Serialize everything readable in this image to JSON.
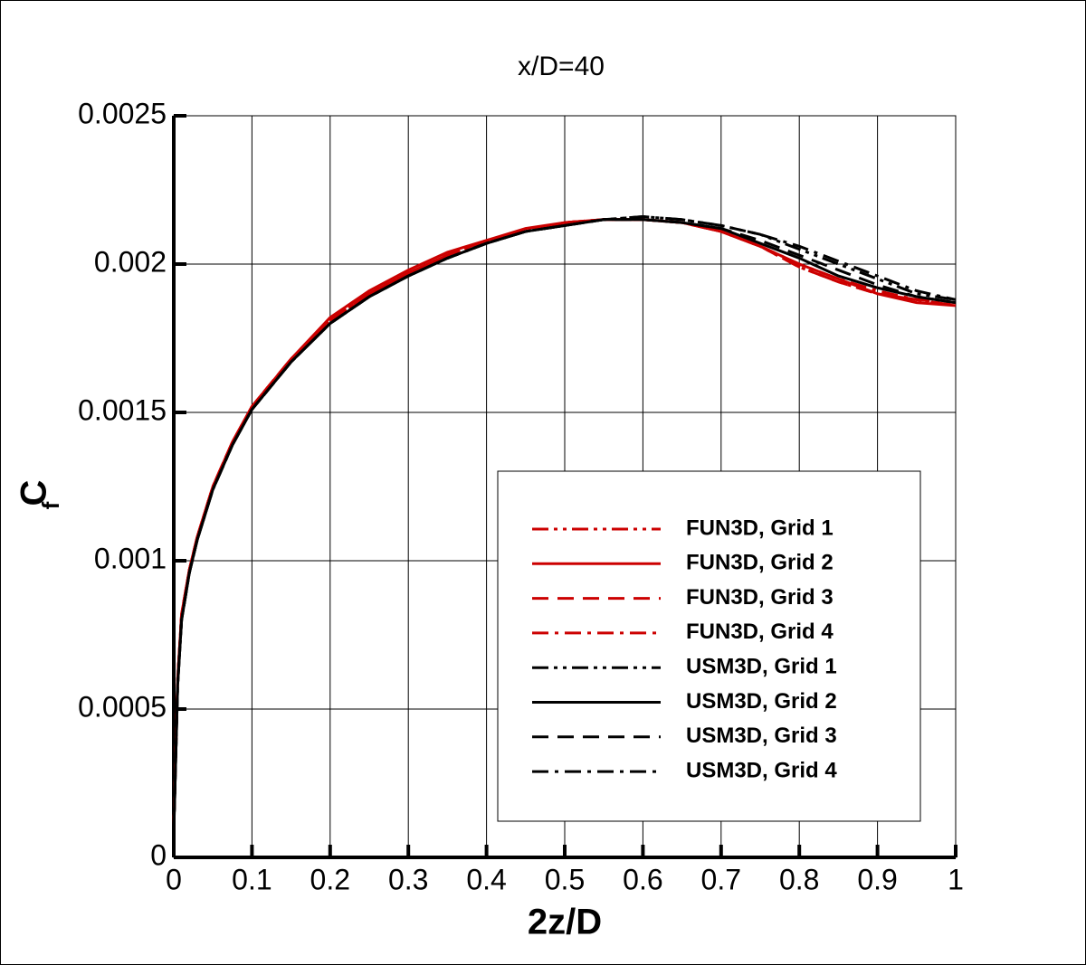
{
  "chart_data": {
    "type": "line",
    "title": "x/D=40",
    "xlabel": "2z/D",
    "ylabel": "C",
    "ylabel_subscript": "f",
    "xlim": [
      0,
      1
    ],
    "xticks": [
      0,
      0.1,
      0.2,
      0.3,
      0.4,
      0.5,
      0.6,
      0.7,
      0.8,
      0.9,
      1
    ],
    "ylim": [
      0,
      0.0025
    ],
    "yticks": [
      0,
      0.0005,
      0.001,
      0.0015,
      0.002,
      0.0025
    ],
    "grid": true,
    "legend": "lower right",
    "x": [
      0,
      0.005,
      0.01,
      0.02,
      0.03,
      0.05,
      0.075,
      0.1,
      0.15,
      0.2,
      0.25,
      0.3,
      0.35,
      0.4,
      0.45,
      0.5,
      0.55,
      0.6,
      0.65,
      0.7,
      0.75,
      0.8,
      0.85,
      0.9,
      0.95,
      1
    ],
    "series": [
      {
        "name": "FUN3D, Grid 1",
        "color": "#cc0000",
        "dash": "dash-dot-dot",
        "values": [
          9e-05,
          0.0006,
          0.00082,
          0.00097,
          0.00108,
          0.00125,
          0.0014,
          0.00152,
          0.00168,
          0.00181,
          0.0019,
          0.00197,
          0.00203,
          0.00208,
          0.00211,
          0.00214,
          0.00215,
          0.00215,
          0.00214,
          0.00211,
          0.00206,
          0.00199,
          0.00194,
          0.0019,
          0.00188,
          0.00186
        ]
      },
      {
        "name": "FUN3D, Grid 2",
        "color": "#cc0000",
        "dash": "solid",
        "values": [
          9e-05,
          0.0006,
          0.00082,
          0.00097,
          0.00108,
          0.00125,
          0.0014,
          0.00152,
          0.00168,
          0.00182,
          0.00191,
          0.00198,
          0.00204,
          0.00208,
          0.00212,
          0.00214,
          0.00215,
          0.00215,
          0.00214,
          0.00211,
          0.00206,
          0.002,
          0.00195,
          0.0019,
          0.00187,
          0.00186
        ]
      },
      {
        "name": "FUN3D, Grid 3",
        "color": "#cc0000",
        "dash": "dashed",
        "values": [
          9e-05,
          0.0006,
          0.00082,
          0.00097,
          0.00108,
          0.00125,
          0.0014,
          0.00152,
          0.00168,
          0.00181,
          0.0019,
          0.00197,
          0.00203,
          0.00208,
          0.00211,
          0.00214,
          0.00215,
          0.00215,
          0.00214,
          0.00211,
          0.00206,
          0.00199,
          0.00194,
          0.0019,
          0.00188,
          0.00186
        ]
      },
      {
        "name": "FUN3D, Grid 4",
        "color": "#cc0000",
        "dash": "dash-dot",
        "values": [
          9e-05,
          0.0006,
          0.00082,
          0.00097,
          0.00108,
          0.00125,
          0.0014,
          0.00152,
          0.00168,
          0.00181,
          0.0019,
          0.00197,
          0.00203,
          0.00208,
          0.00211,
          0.00214,
          0.00215,
          0.00215,
          0.00214,
          0.00211,
          0.00206,
          0.002,
          0.00195,
          0.00191,
          0.00188,
          0.00187
        ]
      },
      {
        "name": "USM3D, Grid 1",
        "color": "#000000",
        "dash": "dash-dot-dot",
        "values": [
          8e-05,
          0.00058,
          0.0008,
          0.00096,
          0.00107,
          0.00124,
          0.00139,
          0.00151,
          0.00167,
          0.0018,
          0.00189,
          0.00196,
          0.00202,
          0.00207,
          0.00211,
          0.00213,
          0.00215,
          0.00216,
          0.00215,
          0.00213,
          0.0021,
          0.00205,
          0.002,
          0.00195,
          0.0019,
          0.00188
        ]
      },
      {
        "name": "USM3D, Grid 2",
        "color": "#000000",
        "dash": "solid",
        "values": [
          8e-05,
          0.00058,
          0.0008,
          0.00096,
          0.00107,
          0.00124,
          0.00139,
          0.00151,
          0.00167,
          0.0018,
          0.00189,
          0.00196,
          0.00202,
          0.00207,
          0.00211,
          0.00213,
          0.00215,
          0.00215,
          0.00214,
          0.00212,
          0.00207,
          0.00202,
          0.00196,
          0.00192,
          0.00189,
          0.00187
        ]
      },
      {
        "name": "USM3D, Grid 3",
        "color": "#000000",
        "dash": "dashed",
        "values": [
          8e-05,
          0.00058,
          0.0008,
          0.00096,
          0.00107,
          0.00124,
          0.00139,
          0.00151,
          0.00167,
          0.0018,
          0.00189,
          0.00196,
          0.00202,
          0.00207,
          0.00211,
          0.00213,
          0.00215,
          0.00215,
          0.00214,
          0.00212,
          0.00208,
          0.00203,
          0.00198,
          0.00193,
          0.00189,
          0.00187
        ]
      },
      {
        "name": "USM3D, Grid 4",
        "color": "#000000",
        "dash": "dash-dot",
        "values": [
          8e-05,
          0.00058,
          0.0008,
          0.00096,
          0.00107,
          0.00124,
          0.00139,
          0.00151,
          0.00167,
          0.0018,
          0.00189,
          0.00196,
          0.00202,
          0.00207,
          0.00211,
          0.00213,
          0.00215,
          0.00216,
          0.00215,
          0.00213,
          0.0021,
          0.00206,
          0.00201,
          0.00196,
          0.00191,
          0.00188
        ]
      }
    ]
  }
}
